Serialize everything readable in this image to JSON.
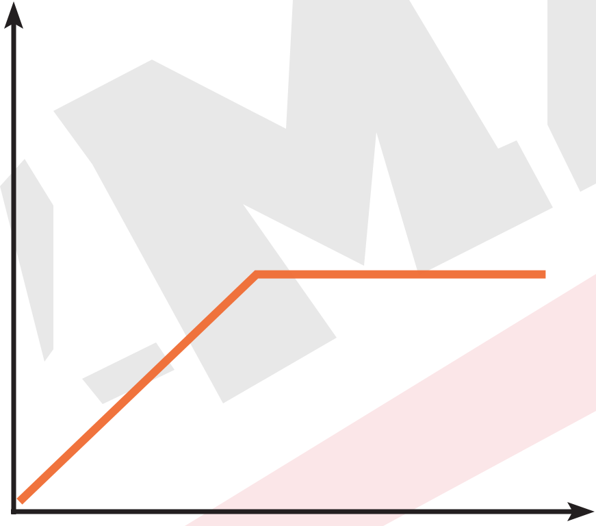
{
  "watermark": {
    "letters": "AMA",
    "red_text": "KYIN",
    "gray_color": "#e8e8e8",
    "red_color": "#f9e1e3"
  },
  "colors": {
    "axis": "#231f20",
    "series": "#ef6b33"
  },
  "chart_data": {
    "type": "line",
    "title": "",
    "xlabel": "",
    "ylabel": "",
    "grid": false,
    "xlim": [
      0,
      100
    ],
    "ylim": [
      0,
      100
    ],
    "series": [
      {
        "x": [
          1,
          42,
          92
        ],
        "y": [
          2,
          47,
          47
        ]
      }
    ]
  }
}
